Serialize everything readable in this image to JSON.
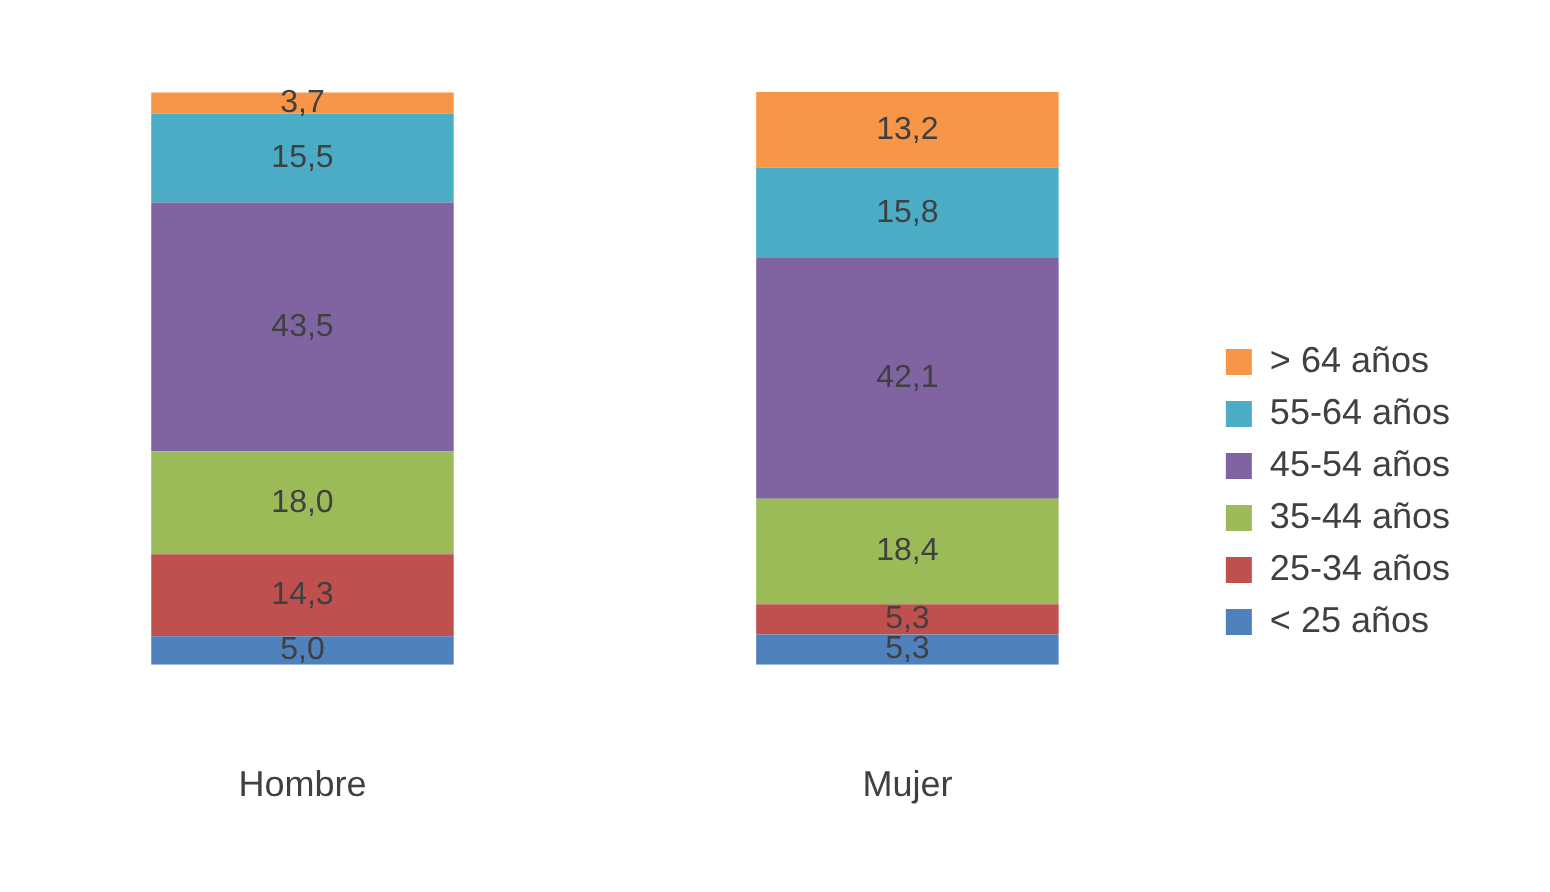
{
  "chart_data": {
    "type": "bar",
    "stacked": true,
    "legend": "right",
    "categories": [
      "Hombre",
      "Mujer"
    ],
    "series": [
      {
        "name": "< 25 años",
        "color": "#4f81bd",
        "values": [
          5.0,
          5.3
        ],
        "value_labels": [
          "5,0",
          "5,3"
        ]
      },
      {
        "name": "25-34 años",
        "color": "#c0504d",
        "values": [
          14.3,
          5.3
        ],
        "value_labels": [
          "14,3",
          "5,3"
        ]
      },
      {
        "name": "35-44 años",
        "color": "#9bbb59",
        "values": [
          18.0,
          18.4
        ],
        "value_labels": [
          "18,0",
          "18,4"
        ]
      },
      {
        "name": "45-54 años",
        "color": "#8064a2",
        "values": [
          43.5,
          42.1
        ],
        "value_labels": [
          "43,5",
          "42,1"
        ]
      },
      {
        "name": "55-64 años",
        "color": "#4bacc6",
        "values": [
          15.5,
          15.8
        ],
        "value_labels": [
          "15,5",
          "15,8"
        ]
      },
      {
        "name": "> 64 años",
        "color": "#f79646",
        "values": [
          3.7,
          13.2
        ],
        "value_labels": [
          "3,7",
          "13,2"
        ]
      }
    ]
  }
}
